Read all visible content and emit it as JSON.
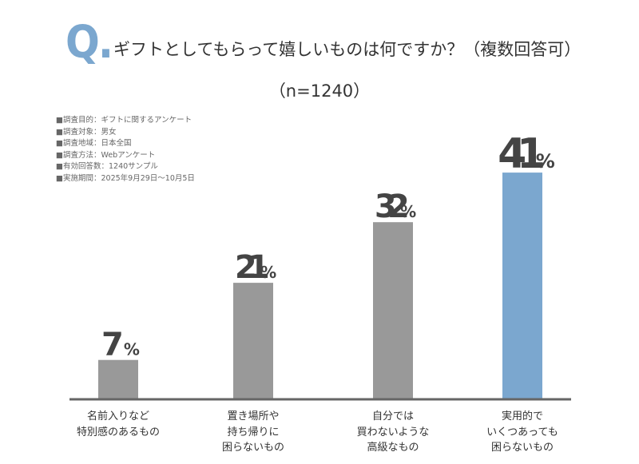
{
  "header": {
    "q_mark": "Q.",
    "title": "ギフトとしてもらって嬉しいものは何ですか？（複数回答可）",
    "sample": "（n=1240）"
  },
  "notes": [
    "■調査目的：ギフトに関するアンケート",
    "■調査対象：男女",
    "■調査地域：日本全国",
    "■調査方法：Webアンケート",
    "■有効回答数：1240サンプル",
    "■実施期間：2025年9月29日～10月5日"
  ],
  "chart_data": {
    "type": "bar",
    "title": "ギフトとしてもらって嬉しいものは何ですか？（複数回答可）",
    "categories": [
      [
        "名前入りなど",
        "特別感のあるもの"
      ],
      [
        "置き場所や",
        "持ち帰りに",
        "困らないもの"
      ],
      [
        "自分では",
        "買わないような",
        "高級なもの"
      ],
      [
        "実用的で",
        "いくつあっても",
        "困らないもの"
      ]
    ],
    "values": [
      7,
      21,
      32,
      41
    ],
    "unit": "%",
    "highlight_index": 3,
    "colors": {
      "default": "#999999",
      "highlight": "#7ba7cf",
      "axis": "#666666",
      "label": "#444444"
    },
    "ylim": [
      0,
      45
    ],
    "grid": false
  }
}
